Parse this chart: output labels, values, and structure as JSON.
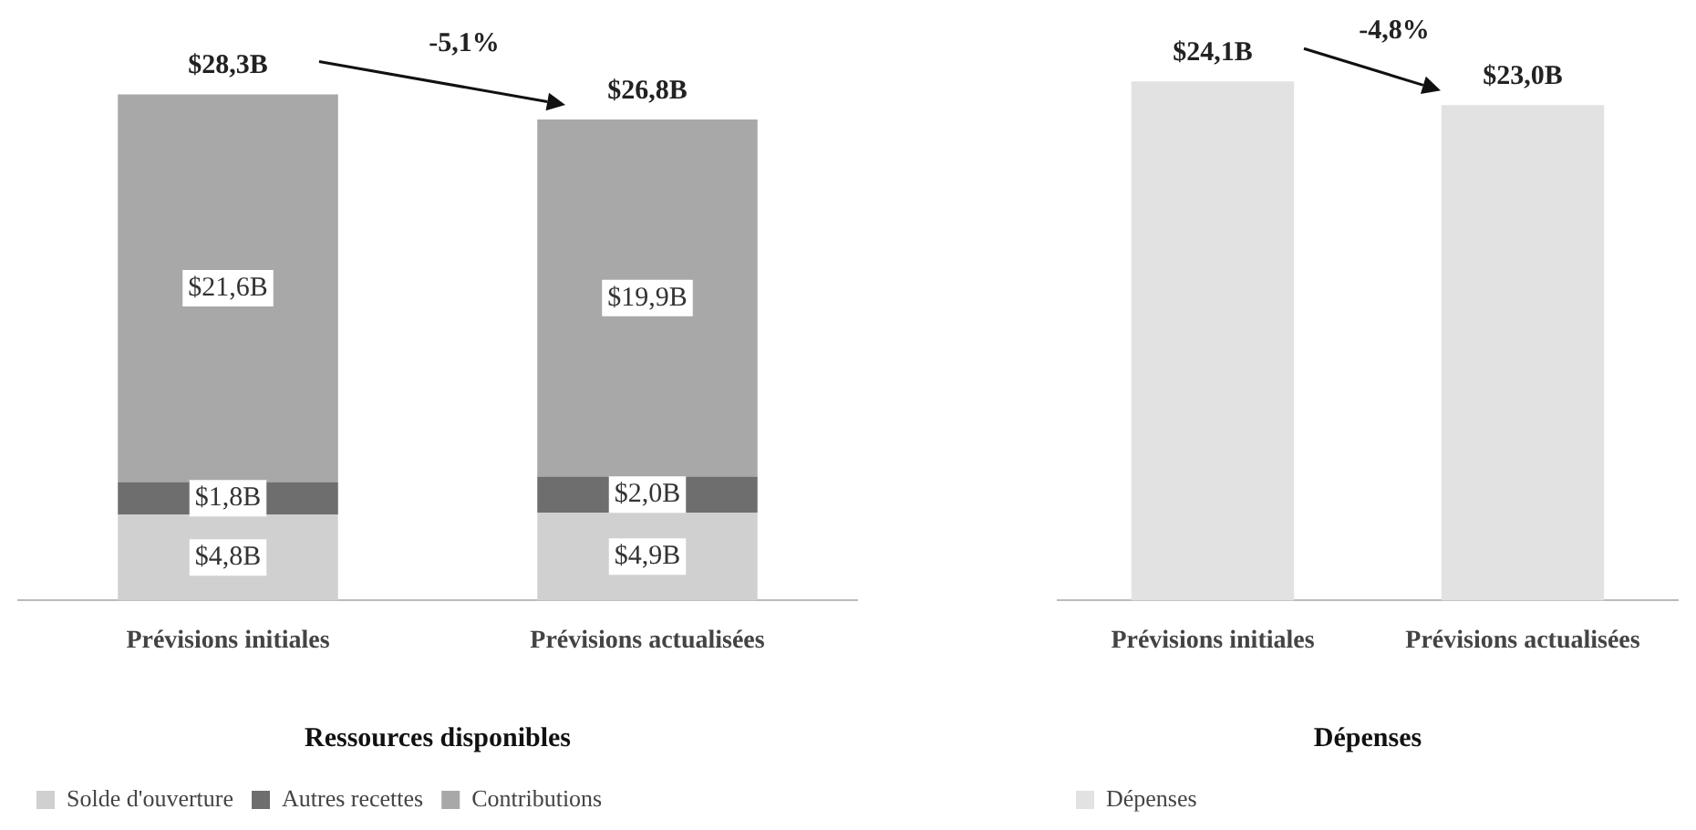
{
  "chart_data": [
    {
      "type": "bar",
      "title": "Ressources disponibles",
      "categories": [
        "Prévisions initiales",
        "Prévisions actualisées"
      ],
      "stacked": true,
      "legend": "bottom",
      "grid": false,
      "series": [
        {
          "name": "Solde d'ouverture",
          "color": "#d0d0d0",
          "values": [
            4.8,
            4.9
          ],
          "value_labels": [
            "$4,8B",
            "$4,9B"
          ]
        },
        {
          "name": "Autres recettes",
          "color": "#6e6e6e",
          "values": [
            1.8,
            2.0
          ],
          "value_labels": [
            "$1,8B",
            "$2,0B"
          ]
        },
        {
          "name": "Contributions",
          "color": "#a8a8a8",
          "values": [
            21.6,
            19.9
          ],
          "value_labels": [
            "$21,6B",
            "$19,9B"
          ]
        }
      ],
      "totals": [
        "$28,3B",
        "$26,8B"
      ],
      "annotations": [
        "-5,1%"
      ]
    },
    {
      "type": "bar",
      "title": "Dépenses",
      "categories": [
        "Prévisions initiales",
        "Prévisions actualisées"
      ],
      "legend": "bottom",
      "grid": false,
      "series": [
        {
          "name": "Dépenses",
          "color": "#e2e2e2",
          "values": [
            24.1,
            23.0
          ],
          "value_labels": [
            "$24,1B",
            "$23,0B"
          ]
        }
      ],
      "annotations": [
        "-4,8%"
      ]
    }
  ]
}
